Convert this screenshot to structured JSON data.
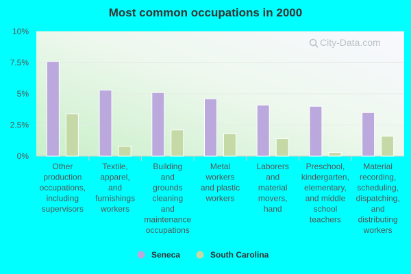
{
  "chart_data": {
    "type": "bar",
    "title": "Most common occupations in 2000",
    "xlabel": "",
    "ylabel": "",
    "ylim": [
      0,
      10
    ],
    "yticks": [
      0,
      2.5,
      5,
      7.5,
      10
    ],
    "ytick_labels": [
      "0%",
      "2.5%",
      "5%",
      "7.5%",
      "10%"
    ],
    "categories": [
      "Other production occupations, including supervisors",
      "Textile, apparel, and furnishings workers",
      "Building and grounds cleaning and maintenance occupations",
      "Metal workers and plastic workers",
      "Laborers and material movers, hand",
      "Preschool, kindergarten, elementary, and middle school teachers",
      "Material recording, scheduling, dispatching, and distributing workers"
    ],
    "category_lines": [
      [
        "Other",
        "production",
        "occupations,",
        "including",
        "supervisors"
      ],
      [
        "Textile,",
        "apparel,",
        "and",
        "furnishings",
        "workers"
      ],
      [
        "Building",
        "and",
        "grounds",
        "cleaning",
        "and",
        "maintenance",
        "occupations"
      ],
      [
        "Metal",
        "workers",
        "and plastic",
        "workers"
      ],
      [
        "Laborers",
        "and",
        "material",
        "movers,",
        "hand"
      ],
      [
        "Preschool,",
        "kindergarten,",
        "elementary,",
        "and middle",
        "school",
        "teachers"
      ],
      [
        "Material",
        "recording,",
        "scheduling,",
        "dispatching,",
        "and",
        "distributing",
        "workers"
      ]
    ],
    "series": [
      {
        "name": "Seneca",
        "color": "#bba8dc",
        "values": [
          7.6,
          5.3,
          5.1,
          4.6,
          4.1,
          4.0,
          3.5
        ]
      },
      {
        "name": "South Carolina",
        "color": "#c5d9a6",
        "values": [
          3.4,
          0.8,
          2.1,
          1.8,
          1.4,
          0.3,
          1.6
        ]
      }
    ],
    "legend_position": "bottom-center",
    "grid": true
  },
  "watermark": "City-Data.com"
}
